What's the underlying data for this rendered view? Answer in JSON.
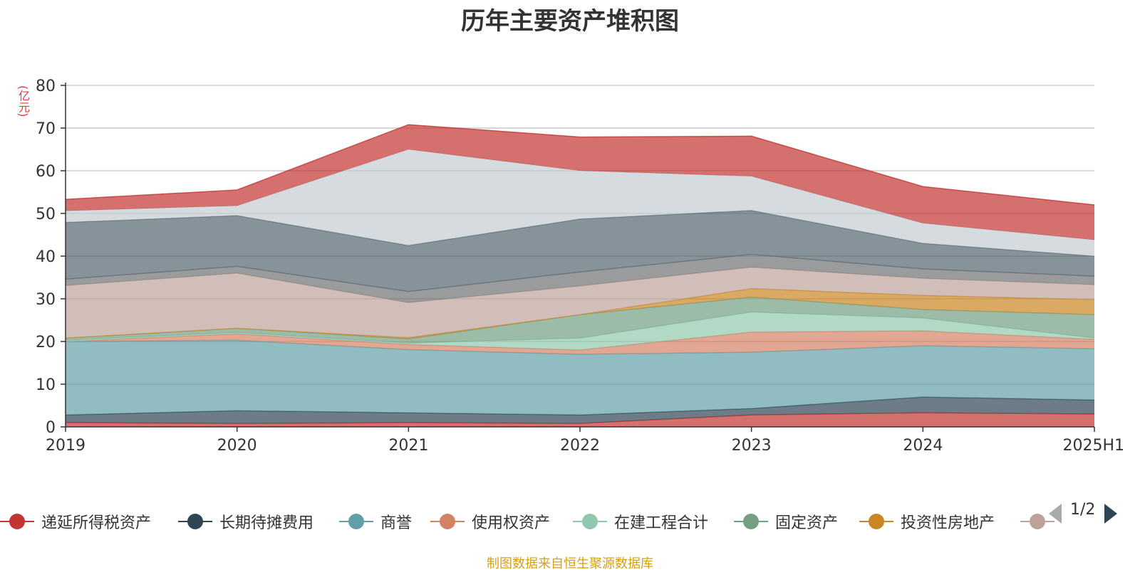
{
  "chart_data": {
    "type": "area",
    "stacked": true,
    "title": "历年主要资产堆积图",
    "ylabel": "(亿元)",
    "ylim": [
      0,
      80
    ],
    "yticks": [
      0,
      10,
      20,
      30,
      40,
      50,
      60,
      70,
      80
    ],
    "categories": [
      "2019",
      "2020",
      "2021",
      "2022",
      "2023",
      "2024",
      "2025H1"
    ],
    "grid": true,
    "series": [
      {
        "name": "递延所得税资产",
        "color": "#c23531",
        "values": [
          1.0,
          0.8,
          1.0,
          0.8,
          2.8,
          3.3,
          3.0
        ]
      },
      {
        "name": "长期待摊费用",
        "color": "#2f4554",
        "values": [
          1.8,
          3.0,
          2.3,
          2.0,
          1.5,
          3.7,
          3.3
        ]
      },
      {
        "name": "商誉",
        "color": "#61a0a8",
        "values": [
          17.2,
          16.5,
          14.8,
          14.2,
          13.2,
          12.0,
          12.0
        ]
      },
      {
        "name": "使用权资产",
        "color": "#d48265",
        "values": [
          0.0,
          1.5,
          1.2,
          1.0,
          4.7,
          3.5,
          2.2
        ]
      },
      {
        "name": "在建工程合计",
        "color": "#91c7ae",
        "values": [
          0.3,
          0.3,
          0.3,
          2.8,
          4.7,
          3.0,
          0.3
        ]
      },
      {
        "name": "固定资产",
        "color": "#749f83",
        "values": [
          0.5,
          1.0,
          1.0,
          5.5,
          3.5,
          2.0,
          5.5
        ]
      },
      {
        "name": "投资性房地产",
        "color": "#ca8622",
        "values": [
          0.0,
          0.0,
          0.3,
          0.0,
          2.0,
          3.3,
          3.5
        ]
      },
      {
        "name": "",
        "color": "#bda29a",
        "values": [
          12.3,
          12.9,
          8.2,
          6.7,
          5.0,
          4.0,
          3.5
        ]
      },
      {
        "name": "",
        "color": "#6e7074",
        "values": [
          1.5,
          1.6,
          2.6,
          3.3,
          3.0,
          2.2,
          2.0
        ]
      },
      {
        "name": "",
        "color": "#546570",
        "values": [
          13.3,
          11.9,
          10.8,
          12.4,
          10.3,
          6.0,
          4.7
        ]
      },
      {
        "name": "",
        "color": "#c4ccd3",
        "values": [
          2.7,
          2.3,
          22.5,
          11.3,
          8.0,
          4.7,
          3.8
        ]
      },
      {
        "name": "",
        "color": "#c23531",
        "values": [
          2.7,
          3.7,
          5.8,
          7.9,
          9.4,
          8.6,
          8.2
        ]
      }
    ]
  },
  "legend": {
    "page_text": "1/2"
  },
  "footer": {
    "source": "制图数据来自恒生聚源数据库"
  }
}
